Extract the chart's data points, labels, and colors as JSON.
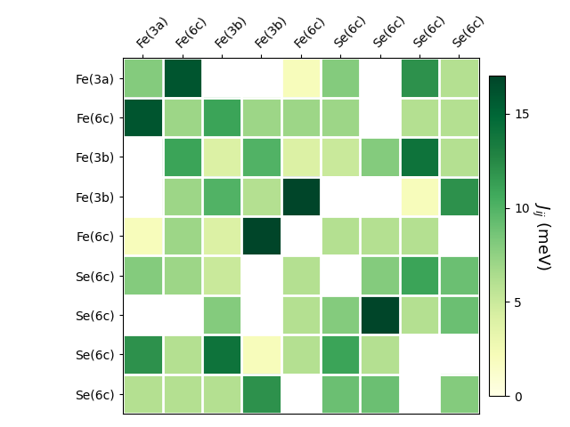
{
  "row_labels": [
    "Fe(3a)",
    "Fe(6c)",
    "Fe(3b)",
    "Fe(3b)",
    "Fe(6c)",
    "Se(6c)",
    "Se(6c)",
    "Se(6c)",
    "Se(6c)"
  ],
  "col_labels": [
    "Fe(3a)",
    "Fe(6c)",
    "Fe(3b)",
    "Fe(3b)",
    "Fe(6c)",
    "Se(6c)",
    "Se(6c)",
    "Se(6c)",
    "Se(6c)"
  ],
  "data": [
    [
      8,
      16,
      null,
      null,
      2,
      8,
      null,
      12,
      6
    ],
    [
      16,
      7,
      11,
      7,
      7,
      7,
      null,
      6,
      6
    ],
    [
      null,
      11,
      4,
      10,
      4,
      5,
      8,
      14,
      6
    ],
    [
      null,
      7,
      10,
      6,
      17,
      null,
      null,
      2,
      12
    ],
    [
      2,
      7,
      4,
      17,
      null,
      6,
      6,
      6,
      null
    ],
    [
      8,
      7,
      5,
      null,
      6,
      null,
      8,
      11,
      9
    ],
    [
      null,
      null,
      8,
      null,
      6,
      8,
      17,
      6,
      9
    ],
    [
      12,
      6,
      14,
      2,
      6,
      11,
      6,
      null,
      null
    ],
    [
      6,
      6,
      6,
      12,
      null,
      9,
      9,
      null,
      8
    ]
  ],
  "vmin": 0,
  "vmax": 17,
  "colorbar_label": "$J_{ij}$ (meV)",
  "colorbar_ticks": [
    0,
    5,
    10,
    15
  ],
  "cmap": "YlGn",
  "figsize": [
    6.4,
    4.8
  ],
  "dpi": 100,
  "grid_color": "white",
  "grid_linewidth": 2,
  "nan_color": "white"
}
